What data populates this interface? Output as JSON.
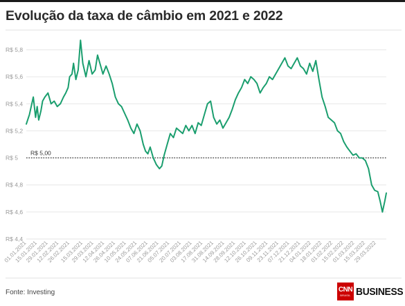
{
  "title": "Evolução da taxa de câmbio em 2021 e 2022",
  "source": "Fonte: Investing",
  "logo": {
    "cnn": "CNN",
    "cnn_sub": "BRASIL",
    "business": "BUSINESS"
  },
  "colors": {
    "line": "#1a9e6e",
    "grid": "#e6e6e6",
    "axis_text": "#999999",
    "title": "#2a2a2a",
    "brand_red": "#cc0000"
  },
  "chart_data": {
    "type": "line",
    "title": "Evolução da taxa de câmbio em 2021 e 2022",
    "xlabel": "",
    "ylabel": "",
    "ylim": [
      4.4,
      5.8
    ],
    "yticks": [
      5.8,
      5.6,
      5.4,
      5.2,
      5,
      4.8,
      4.6,
      4.4
    ],
    "ytick_labels": [
      "R$ 5,8",
      "R$ 5,6",
      "R$ 5,4",
      "R$ 5,2",
      "R$ 5",
      "R$ 4,8",
      "R$ 4,6",
      "R$ 4,4"
    ],
    "grid": true,
    "reference_line": {
      "y": 5.0,
      "label": "R$ 5,00",
      "style": "dotted"
    },
    "x_tick_labels": [
      "01.01.2021",
      "15.01.2021",
      "29.01.2021",
      "12.02.2021",
      "26.02.2021",
      "15.03.2021",
      "29.03.2021",
      "12.04.2021",
      "26.04.2021",
      "10.05.2021",
      "24.05.2021",
      "07.06.2021",
      "21.06.2021",
      "05.07.2021",
      "20.07.2021",
      "03.08.2021",
      "17.08.2021",
      "31.08.2021",
      "14.09.2021",
      "28.09.2021",
      "12.10.2021",
      "26.10.2021",
      "09.11.2021",
      "23.11.2021",
      "07.12.2021",
      "21.12.2021",
      "04.01.2022",
      "18.01.2022",
      "01.02.2022",
      "15.02.2022",
      "01.03.2022",
      "15.03.2022",
      "29.03.2022"
    ],
    "series": [
      {
        "x": [
          "01.01.2021",
          "05.01.2021",
          "10.01.2021",
          "13.01.2021",
          "15.01.2021",
          "17.01.2021",
          "20.01.2021",
          "22.01.2021",
          "25.01.2021",
          "29.01.2021",
          "02.02.2021",
          "06.02.2021",
          "10.02.2021",
          "14.02.2021",
          "18.02.2021",
          "21.02.2021",
          "24.02.2021",
          "26.02.2021",
          "01.03.2021",
          "03.03.2021",
          "06.03.2021",
          "09.03.2021",
          "12.03.2021",
          "15.03.2021",
          "19.03.2021",
          "23.03.2021",
          "27.03.2021",
          "31.03.2021",
          "03.04.2021",
          "07.04.2021",
          "10.04.2021",
          "14.04.2021",
          "18.04.2021",
          "22.04.2021",
          "26.04.2021",
          "30.04.2021",
          "04.05.2021",
          "08.05.2021",
          "12.05.2021",
          "16.05.2021",
          "20.05.2021",
          "24.05.2021",
          "28.05.2021",
          "01.06.2021",
          "04.06.2021",
          "07.06.2021",
          "10.06.2021",
          "14.06.2021",
          "18.06.2021",
          "22.06.2021",
          "25.06.2021",
          "28.06.2021",
          "02.07.2021",
          "06.07.2021",
          "10.07.2021",
          "14.07.2021",
          "18.07.2021",
          "22.07.2021",
          "26.07.2021",
          "30.07.2021",
          "03.08.2021",
          "07.08.2021",
          "11.08.2021",
          "15.08.2021",
          "19.08.2021",
          "23.08.2021",
          "27.08.2021",
          "31.08.2021",
          "04.09.2021",
          "08.09.2021",
          "12.09.2021",
          "16.09.2021",
          "20.09.2021",
          "24.09.2021",
          "28.09.2021",
          "02.10.2021",
          "06.10.2021",
          "10.10.2021",
          "14.10.2021",
          "18.10.2021",
          "22.10.2021",
          "26.10.2021",
          "30.10.2021",
          "03.11.2021",
          "07.11.2021",
          "11.11.2021",
          "15.11.2021",
          "19.11.2021",
          "23.11.2021",
          "27.11.2021",
          "01.12.2021",
          "05.12.2021",
          "09.12.2021",
          "13.12.2021",
          "17.12.2021",
          "21.12.2021",
          "25.12.2021",
          "29.12.2021",
          "02.01.2022",
          "06.01.2022",
          "10.01.2022",
          "14.01.2022",
          "18.01.2022",
          "22.01.2022",
          "26.01.2022",
          "30.01.2022",
          "03.02.2022",
          "07.02.2022",
          "11.02.2022",
          "15.02.2022",
          "19.02.2022",
          "23.02.2022",
          "27.02.2022",
          "03.03.2022",
          "07.03.2022",
          "11.03.2022",
          "15.03.2022",
          "19.03.2022",
          "23.03.2022",
          "27.03.2022",
          "31.03.2022",
          "03.04.2022",
          "06.04.2022",
          "09.04.2022",
          "11.04.2022"
        ],
        "values": [
          5.25,
          5.32,
          5.45,
          5.3,
          5.38,
          5.28,
          5.35,
          5.42,
          5.45,
          5.48,
          5.4,
          5.42,
          5.38,
          5.4,
          5.45,
          5.48,
          5.52,
          5.6,
          5.62,
          5.7,
          5.58,
          5.65,
          5.87,
          5.7,
          5.6,
          5.72,
          5.62,
          5.65,
          5.76,
          5.68,
          5.62,
          5.68,
          5.62,
          5.55,
          5.45,
          5.4,
          5.38,
          5.33,
          5.28,
          5.22,
          5.18,
          5.25,
          5.2,
          5.1,
          5.05,
          5.03,
          5.08,
          5.0,
          4.95,
          4.92,
          4.94,
          5.02,
          5.1,
          5.18,
          5.15,
          5.22,
          5.2,
          5.18,
          5.24,
          5.2,
          5.24,
          5.18,
          5.26,
          5.24,
          5.32,
          5.4,
          5.42,
          5.3,
          5.25,
          5.28,
          5.22,
          5.26,
          5.3,
          5.36,
          5.43,
          5.48,
          5.52,
          5.58,
          5.55,
          5.6,
          5.58,
          5.55,
          5.48,
          5.52,
          5.55,
          5.6,
          5.58,
          5.62,
          5.66,
          5.7,
          5.74,
          5.68,
          5.66,
          5.7,
          5.74,
          5.68,
          5.66,
          5.62,
          5.7,
          5.64,
          5.72,
          5.58,
          5.45,
          5.38,
          5.3,
          5.28,
          5.26,
          5.2,
          5.18,
          5.12,
          5.08,
          5.05,
          5.02,
          5.03,
          5.0,
          5.0,
          4.98,
          4.92,
          4.8,
          4.76,
          4.75,
          4.68,
          4.6,
          4.68,
          4.74
        ]
      }
    ]
  }
}
